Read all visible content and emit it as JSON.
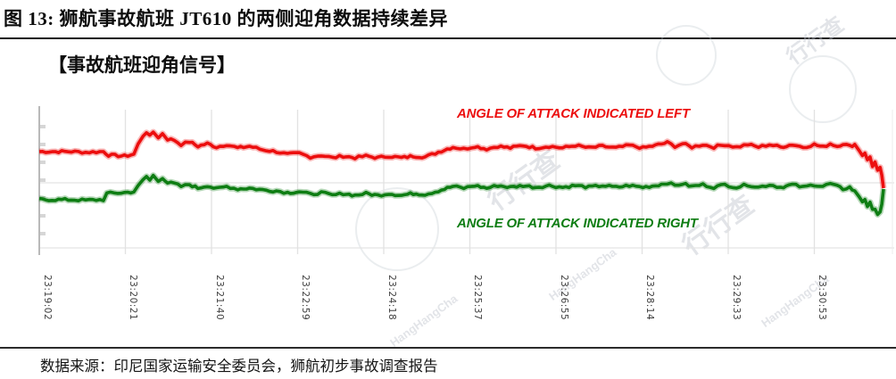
{
  "page": {
    "title": "图 13:  狮航事故航班 JT610 的两侧迎角数据持续差异",
    "section_heading": "【事故航班迎角信号】",
    "source_note": "数据来源：印尼国家运输安全委员会，狮航初步事故调查报告"
  },
  "watermark": {
    "logo_text": "行行查",
    "latin_text": "HangHangCha"
  },
  "chart_data": {
    "type": "line",
    "title": "",
    "xlabel": "",
    "ylabel": "",
    "grid": true,
    "legend_position": "inline text labels inside plot",
    "x_axis": {
      "kind": "time",
      "tick_labels": [
        "23:19:02",
        "23:20:21",
        "23:21:40",
        "23:22:59",
        "23:24:18",
        "23:25:37",
        "23:26:55",
        "23:28:14",
        "23:29:33",
        "23:30:53"
      ],
      "tick_label_rotation_deg": 90
    },
    "y_axis": {
      "tick_labels": [],
      "note": "no numeric scale visible; values below are relative units 0-100 estimated from plot",
      "minor_ticks": 7
    },
    "series": [
      {
        "name": "ANGLE OF ATTACK INDICATED LEFT",
        "color": "#ec0e0e",
        "points": [
          [
            0,
            71
          ],
          [
            0.038,
            71
          ],
          [
            0.055,
            70.5
          ],
          [
            0.076,
            71
          ],
          [
            0.082,
            68.5
          ],
          [
            0.101,
            67.9
          ],
          [
            0.112,
            69.1
          ],
          [
            0.117,
            75.9
          ],
          [
            0.123,
            82.1
          ],
          [
            0.127,
            84.6
          ],
          [
            0.131,
            81.5
          ],
          [
            0.135,
            84.6
          ],
          [
            0.141,
            80.9
          ],
          [
            0.146,
            83.3
          ],
          [
            0.152,
            79.6
          ],
          [
            0.16,
            79
          ],
          [
            0.168,
            75.9
          ],
          [
            0.178,
            77.8
          ],
          [
            0.188,
            74.7
          ],
          [
            0.199,
            76.5
          ],
          [
            0.21,
            74.1
          ],
          [
            0.222,
            75.9
          ],
          [
            0.235,
            73.5
          ],
          [
            0.249,
            74.7
          ],
          [
            0.265,
            72.2
          ],
          [
            0.281,
            71
          ],
          [
            0.294,
            69.1
          ],
          [
            0.308,
            69.8
          ],
          [
            0.321,
            67.3
          ],
          [
            0.334,
            68.5
          ],
          [
            0.347,
            66.7
          ],
          [
            0.36,
            67.9
          ],
          [
            0.374,
            66.7
          ],
          [
            0.387,
            67.9
          ],
          [
            0.401,
            66.7
          ],
          [
            0.414,
            67.9
          ],
          [
            0.429,
            66.7
          ],
          [
            0.443,
            67.9
          ],
          [
            0.457,
            67.3
          ],
          [
            0.469,
            69.8
          ],
          [
            0.48,
            72.2
          ],
          [
            0.49,
            74.1
          ],
          [
            0.503,
            72.8
          ],
          [
            0.516,
            74.7
          ],
          [
            0.53,
            72.8
          ],
          [
            0.543,
            74.7
          ],
          [
            0.558,
            73.5
          ],
          [
            0.573,
            75.3
          ],
          [
            0.588,
            73.5
          ],
          [
            0.604,
            74.7
          ],
          [
            0.62,
            73.5
          ],
          [
            0.635,
            75.3
          ],
          [
            0.651,
            73.5
          ],
          [
            0.667,
            74.7
          ],
          [
            0.683,
            73.5
          ],
          [
            0.699,
            75.3
          ],
          [
            0.715,
            73.5
          ],
          [
            0.73,
            75.3
          ],
          [
            0.744,
            77.2
          ],
          [
            0.753,
            74.7
          ],
          [
            0.762,
            76.5
          ],
          [
            0.773,
            74.1
          ],
          [
            0.786,
            75.9
          ],
          [
            0.799,
            74.1
          ],
          [
            0.812,
            75.9
          ],
          [
            0.826,
            74.1
          ],
          [
            0.839,
            75.9
          ],
          [
            0.852,
            74.1
          ],
          [
            0.865,
            75.9
          ],
          [
            0.878,
            74.1
          ],
          [
            0.892,
            75.9
          ],
          [
            0.905,
            74.1
          ],
          [
            0.918,
            75.9
          ],
          [
            0.928,
            74.1
          ],
          [
            0.937,
            76.5
          ],
          [
            0.945,
            74.7
          ],
          [
            0.952,
            76.5
          ],
          [
            0.96,
            74.7
          ],
          [
            0.966,
            75.9
          ],
          [
            0.971,
            72.2
          ],
          [
            0.975,
            68.5
          ],
          [
            0.978,
            70.4
          ],
          [
            0.981,
            64.8
          ],
          [
            0.984,
            67.3
          ],
          [
            0.987,
            61.1
          ],
          [
            0.99,
            63.6
          ],
          [
            0.993,
            57.4
          ],
          [
            0.996,
            59.3
          ],
          [
            0.998,
            54.9
          ],
          [
            1,
            45.7
          ]
        ]
      },
      {
        "name": "ANGLE OF ATTACK INDICATED RIGHT",
        "color": "#0e7d13",
        "points": [
          [
            0,
            37.7
          ],
          [
            0.038,
            37.7
          ],
          [
            0.055,
            37.3
          ],
          [
            0.076,
            37.7
          ],
          [
            0.08,
            42
          ],
          [
            0.101,
            42.6
          ],
          [
            0.112,
            43.2
          ],
          [
            0.117,
            46.9
          ],
          [
            0.123,
            51.2
          ],
          [
            0.127,
            53.7
          ],
          [
            0.131,
            51.2
          ],
          [
            0.135,
            54.3
          ],
          [
            0.141,
            50.6
          ],
          [
            0.146,
            53.1
          ],
          [
            0.152,
            49.4
          ],
          [
            0.16,
            48.8
          ],
          [
            0.168,
            46.9
          ],
          [
            0.178,
            48.1
          ],
          [
            0.188,
            45.7
          ],
          [
            0.199,
            47.5
          ],
          [
            0.21,
            45.1
          ],
          [
            0.222,
            46.9
          ],
          [
            0.235,
            45.1
          ],
          [
            0.249,
            45.7
          ],
          [
            0.265,
            44.4
          ],
          [
            0.281,
            43.8
          ],
          [
            0.294,
            42.6
          ],
          [
            0.308,
            43.2
          ],
          [
            0.321,
            41.4
          ],
          [
            0.334,
            42.6
          ],
          [
            0.347,
            40.7
          ],
          [
            0.36,
            42
          ],
          [
            0.374,
            40.7
          ],
          [
            0.387,
            42
          ],
          [
            0.401,
            40.7
          ],
          [
            0.414,
            42
          ],
          [
            0.429,
            40.7
          ],
          [
            0.443,
            42
          ],
          [
            0.457,
            41.4
          ],
          [
            0.469,
            43.2
          ],
          [
            0.48,
            45.1
          ],
          [
            0.49,
            46.9
          ],
          [
            0.503,
            45.7
          ],
          [
            0.516,
            47.5
          ],
          [
            0.53,
            45.7
          ],
          [
            0.543,
            47.5
          ],
          [
            0.558,
            46.3
          ],
          [
            0.573,
            47.5
          ],
          [
            0.588,
            46.3
          ],
          [
            0.604,
            47.5
          ],
          [
            0.62,
            46.3
          ],
          [
            0.635,
            47.5
          ],
          [
            0.651,
            46.3
          ],
          [
            0.667,
            47.5
          ],
          [
            0.683,
            46.3
          ],
          [
            0.699,
            47.5
          ],
          [
            0.715,
            46.3
          ],
          [
            0.73,
            47.5
          ],
          [
            0.744,
            49.4
          ],
          [
            0.753,
            47.5
          ],
          [
            0.762,
            48.8
          ],
          [
            0.773,
            46.9
          ],
          [
            0.786,
            48.1
          ],
          [
            0.799,
            46.3
          ],
          [
            0.812,
            48.1
          ],
          [
            0.826,
            46.3
          ],
          [
            0.839,
            48.1
          ],
          [
            0.852,
            46.3
          ],
          [
            0.865,
            48.1
          ],
          [
            0.878,
            46.3
          ],
          [
            0.892,
            48.1
          ],
          [
            0.905,
            46.3
          ],
          [
            0.918,
            48.1
          ],
          [
            0.928,
            46.9
          ],
          [
            0.937,
            48.8
          ],
          [
            0.945,
            46.9
          ],
          [
            0.952,
            45.1
          ],
          [
            0.96,
            46.3
          ],
          [
            0.966,
            43.2
          ],
          [
            0.971,
            40.1
          ],
          [
            0.975,
            36.4
          ],
          [
            0.978,
            38.3
          ],
          [
            0.981,
            33.3
          ],
          [
            0.984,
            35.2
          ],
          [
            0.987,
            30.2
          ],
          [
            0.99,
            32.1
          ],
          [
            0.993,
            27.8
          ],
          [
            0.996,
            29.6
          ],
          [
            0.998,
            34
          ],
          [
            1,
            45.1
          ]
        ]
      }
    ]
  }
}
